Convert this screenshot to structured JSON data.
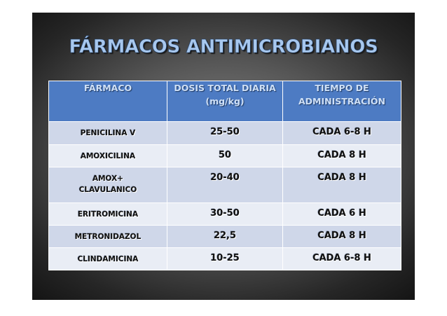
{
  "slide": {
    "title": "FÁRMACOS ANTIMICROBIANOS"
  },
  "table": {
    "headers": {
      "drug": "FÁRMACO",
      "dose_line1": "DOSIS TOTAL DIARIA",
      "dose_line2": "(mg/kg)",
      "interval_line1": "TIEMPO DE",
      "interval_line2": "ADMINISTRACIÓN"
    },
    "rows": [
      {
        "drug_line1": "PENICILINA V",
        "drug_line2": "",
        "dose": "25-50",
        "interval": "CADA 6-8 H"
      },
      {
        "drug_line1": "AMOXICILINA",
        "drug_line2": "",
        "dose": "50",
        "interval": "CADA 8 H"
      },
      {
        "drug_line1": "AMOX+",
        "drug_line2": "CLAVULANICO",
        "dose": "20-40",
        "interval": "CADA 8 H"
      },
      {
        "drug_line1": "ERITROMICINA",
        "drug_line2": "",
        "dose": "30-50",
        "interval": "CADA 6 H"
      },
      {
        "drug_line1": "METRONIDAZOL",
        "drug_line2": "",
        "dose": "22,5",
        "interval": "CADA 8 H"
      },
      {
        "drug_line1": "CLINDAMICINA",
        "drug_line2": "",
        "dose": "10-25",
        "interval": "CADA 6-8 H"
      }
    ]
  },
  "colors": {
    "header_bg": "#4d7bc3",
    "header_text": "#cfe0f6",
    "title_text": "#a8c8ee",
    "row_odd": "#cfd7e9",
    "row_even": "#e9edf5"
  }
}
